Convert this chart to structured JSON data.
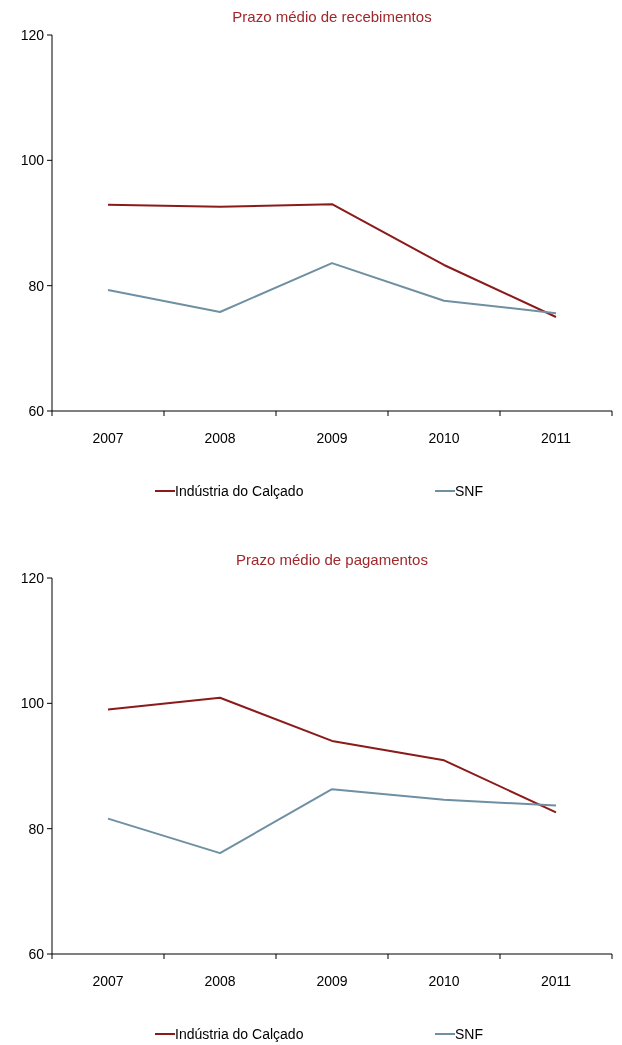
{
  "chart_data": [
    {
      "type": "line",
      "title": "Prazo médio de recebimentos",
      "categories": [
        "2007",
        "2008",
        "2009",
        "2010",
        "2011"
      ],
      "ylim": [
        60,
        120
      ],
      "yticks": [
        60,
        80,
        100,
        120
      ],
      "grid": false,
      "legend": "bottom",
      "marker": "none",
      "series": [
        {
          "name": "Indústria do Calçado",
          "color": "#8b1a1a",
          "values": [
            92.9,
            92.6,
            93.0,
            83.3,
            75.0
          ]
        },
        {
          "name": "SNF",
          "color": "#6f8fa3",
          "values": [
            79.3,
            75.8,
            83.6,
            77.6,
            75.6
          ]
        }
      ]
    },
    {
      "type": "line",
      "title": "Prazo médio de pagamentos",
      "categories": [
        "2007",
        "2008",
        "2009",
        "2010",
        "2011"
      ],
      "ylim": [
        60,
        120
      ],
      "yticks": [
        60,
        80,
        100,
        120
      ],
      "grid": false,
      "legend": "bottom",
      "marker": "none",
      "series": [
        {
          "name": "Indústria do Calçado",
          "color": "#8b1a1a",
          "values": [
            99.0,
            100.9,
            94.0,
            90.9,
            82.6
          ]
        },
        {
          "name": "SNF",
          "color": "#6f8fa3",
          "values": [
            81.6,
            76.1,
            86.3,
            84.6,
            83.7
          ]
        }
      ]
    }
  ]
}
